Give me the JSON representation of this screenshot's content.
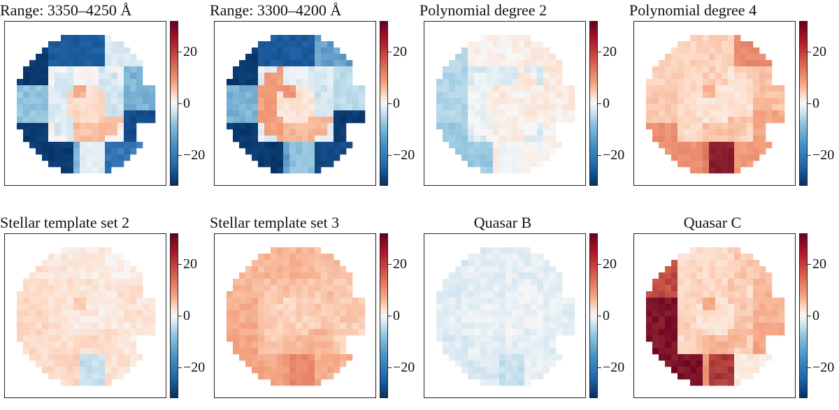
{
  "chart_data": [
    {
      "type": "heatmap",
      "title": "Range: 3350–4250 Å",
      "title_align": "left",
      "colorbar": {
        "ticks": [
          "20",
          "0",
          "−20"
        ],
        "range": [
          -30,
          30
        ]
      },
      "regions": {
        "outer_left_top": -28,
        "outer_left_mid": -10,
        "outer_left_bot": -28,
        "top": -22,
        "top_right": -3,
        "right": -12,
        "right_low": -25,
        "bottom": -12,
        "bottom_right": -18,
        "center": 4,
        "center_left": -3,
        "center_low": 7,
        "spot": 9,
        "inner_left": 0,
        "inner_right": -4,
        "lower_mid": -2
      }
    },
    {
      "type": "heatmap",
      "title": "Range: 3300–4200 Å",
      "title_align": "left",
      "colorbar": {
        "ticks": [
          "20",
          "0",
          "−20"
        ],
        "range": [
          -30,
          30
        ]
      },
      "regions": {
        "outer_left_top": -28,
        "outer_left_mid": -12,
        "outer_left_bot": -28,
        "top": -22,
        "top_right": -14,
        "right": -6,
        "right_low": -28,
        "bottom": -14,
        "bottom_right": -25,
        "center": 3,
        "center_left": 11,
        "center_low": 8,
        "spot": 12,
        "inner_left": -2,
        "inner_right": -4,
        "lower_mid": -10
      }
    },
    {
      "type": "heatmap",
      "title": "Polynomial degree 2",
      "title_align": "left",
      "colorbar": {
        "ticks": [
          "20",
          "0",
          "−20"
        ],
        "range": [
          -30,
          30
        ]
      },
      "regions": {
        "outer_left_top": -7,
        "outer_left_mid": -7,
        "outer_left_bot": -9,
        "top": 1,
        "top_right": 2,
        "right": 2,
        "right_low": 1,
        "bottom": 2,
        "bottom_right": 0,
        "center": 1,
        "center_left": -1,
        "center_low": 1,
        "spot": 2,
        "inner_left": -3,
        "inner_right": 2,
        "lower_mid": 0
      }
    },
    {
      "type": "heatmap",
      "title": "Polynomial degree 4",
      "title_align": "left",
      "colorbar": {
        "ticks": [
          "20",
          "0",
          "−20"
        ],
        "range": [
          -30,
          30
        ]
      },
      "regions": {
        "outer_left_top": 5,
        "outer_left_mid": 6,
        "outer_left_bot": 13,
        "top": 5,
        "top_right": 14,
        "right": 7,
        "right_low": 10,
        "bottom": 16,
        "bottom_right": 12,
        "center": 3,
        "center_left": 4,
        "center_low": 7,
        "spot": 8,
        "inner_left": 5,
        "inner_right": 3,
        "lower_mid": 27
      }
    },
    {
      "type": "heatmap",
      "title": "Stellar template set 2",
      "title_align": "left",
      "colorbar": {
        "ticks": [
          "20",
          "0",
          "−20"
        ],
        "range": [
          -30,
          30
        ]
      },
      "regions": {
        "outer_left_top": 3,
        "outer_left_mid": 4,
        "outer_left_bot": 4,
        "top": 2,
        "top_right": 1,
        "right": 3,
        "right_low": 2,
        "bottom": 5,
        "bottom_right": 3,
        "center": 2,
        "center_left": 3,
        "center_low": 4,
        "spot": 5,
        "inner_left": 3,
        "inner_right": 2,
        "lower_mid": -5
      }
    },
    {
      "type": "heatmap",
      "title": "Stellar template set 3",
      "title_align": "left",
      "colorbar": {
        "ticks": [
          "20",
          "0",
          "−20"
        ],
        "range": [
          -30,
          30
        ]
      },
      "regions": {
        "outer_left_top": 8,
        "outer_left_mid": 9,
        "outer_left_bot": 10,
        "top": 8,
        "top_right": 7,
        "right": 6,
        "right_low": 5,
        "bottom": 11,
        "bottom_right": 9,
        "center": 5,
        "center_left": 6,
        "center_low": 8,
        "spot": 4,
        "inner_left": 7,
        "inner_right": 6,
        "lower_mid": 14
      }
    },
    {
      "type": "heatmap",
      "title": "Quasar B",
      "title_align": "center",
      "colorbar": {
        "ticks": [
          "20",
          "0",
          "−20"
        ],
        "range": [
          -30,
          30
        ]
      },
      "regions": {
        "outer_left_top": -3,
        "outer_left_mid": -2,
        "outer_left_bot": -3,
        "top": -2,
        "top_right": -2,
        "right": -2,
        "right_low": -2,
        "bottom": -3,
        "bottom_right": -2,
        "center": -1,
        "center_left": -2,
        "center_low": -2,
        "spot": -1,
        "inner_left": -2,
        "inner_right": -1,
        "lower_mid": -5
      }
    },
    {
      "type": "heatmap",
      "title": "Quasar C",
      "title_align": "center",
      "colorbar": {
        "ticks": [
          "20",
          "0",
          "−20"
        ],
        "range": [
          -30,
          30
        ]
      },
      "regions": {
        "outer_left_top": 22,
        "outer_left_mid": 28,
        "outer_left_bot": 28,
        "top": 4,
        "top_right": 6,
        "right": 8,
        "right_low": 10,
        "bottom": 12,
        "bottom_right": 2,
        "center": 3,
        "center_left": 5,
        "center_low": 8,
        "spot": 9,
        "inner_left": 4,
        "inner_right": 6,
        "lower_mid": 24
      }
    }
  ]
}
